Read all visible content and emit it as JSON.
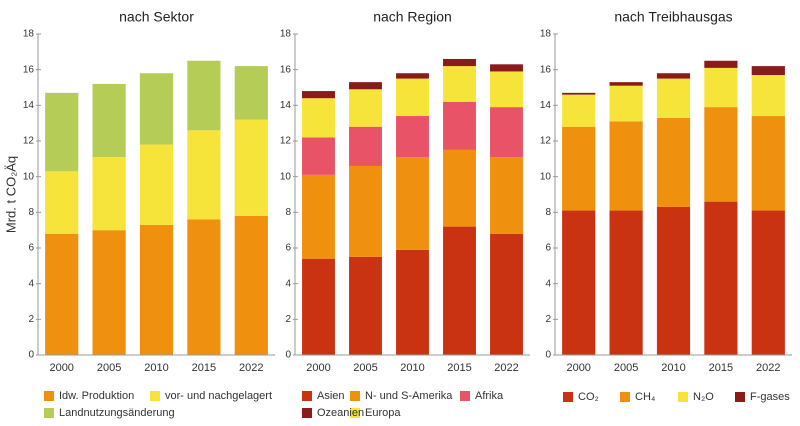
{
  "chart_data": [
    {
      "type": "bar",
      "stacked": true,
      "title": "nach Sektor",
      "y_label": "Mrd. t CO₂Äq",
      "categories": [
        "2000",
        "2005",
        "2010",
        "2015",
        "2022"
      ],
      "ylim": [
        0,
        18
      ],
      "yticks": [
        0,
        2,
        4,
        6,
        8,
        10,
        12,
        14,
        16,
        18
      ],
      "grid": false,
      "series": [
        {
          "name": "Idw. Produktion",
          "color": "#f0900f",
          "values": [
            6.8,
            7.0,
            7.3,
            7.6,
            7.8
          ]
        },
        {
          "name": "vor- und nachgelagert",
          "color": "#f7e43a",
          "values": [
            3.5,
            4.1,
            4.5,
            5.0,
            5.4
          ]
        },
        {
          "name": "Landnutzungsänderung",
          "color": "#b5cc56",
          "values": [
            4.4,
            4.1,
            4.0,
            3.9,
            3.0
          ]
        }
      ]
    },
    {
      "type": "bar",
      "stacked": true,
      "title": "nach Region",
      "categories": [
        "2000",
        "2005",
        "2010",
        "2015",
        "2022"
      ],
      "ylim": [
        0,
        18
      ],
      "yticks": [
        0,
        2,
        4,
        6,
        8,
        10,
        12,
        14,
        16,
        18
      ],
      "grid": false,
      "series": [
        {
          "name": "Asien",
          "color": "#c93312",
          "values": [
            5.4,
            5.5,
            5.9,
            7.2,
            6.8
          ]
        },
        {
          "name": "N- und S-Amerika",
          "color": "#f0900f",
          "values": [
            4.7,
            5.1,
            5.2,
            4.3,
            4.3
          ]
        },
        {
          "name": "Afrika",
          "color": "#e95367",
          "values": [
            2.1,
            2.2,
            2.3,
            2.7,
            2.8
          ]
        },
        {
          "name": "Europa",
          "color": "#f7e43a",
          "values": [
            2.2,
            2.1,
            2.1,
            2.0,
            2.0
          ]
        },
        {
          "name": "Ozeanien",
          "color": "#8b1a1a",
          "values": [
            0.4,
            0.4,
            0.3,
            0.4,
            0.4
          ]
        }
      ]
    },
    {
      "type": "bar",
      "stacked": true,
      "title": "nach Treibhausgas",
      "categories": [
        "2000",
        "2005",
        "2010",
        "2015",
        "2022"
      ],
      "ylim": [
        0,
        18
      ],
      "yticks": [
        0,
        2,
        4,
        6,
        8,
        10,
        12,
        14,
        16,
        18
      ],
      "grid": false,
      "series": [
        {
          "name": "CO₂",
          "color": "#c93312",
          "values": [
            8.1,
            8.1,
            8.3,
            8.6,
            8.1
          ]
        },
        {
          "name": "CH₄",
          "color": "#f0900f",
          "values": [
            4.7,
            5.0,
            5.0,
            5.3,
            5.3
          ]
        },
        {
          "name": "N₂O",
          "color": "#f7e43a",
          "values": [
            1.8,
            2.0,
            2.2,
            2.2,
            2.3
          ]
        },
        {
          "name": "F-gases",
          "color": "#8b1a1a",
          "values": [
            0.1,
            0.2,
            0.3,
            0.4,
            0.5
          ]
        }
      ]
    }
  ]
}
